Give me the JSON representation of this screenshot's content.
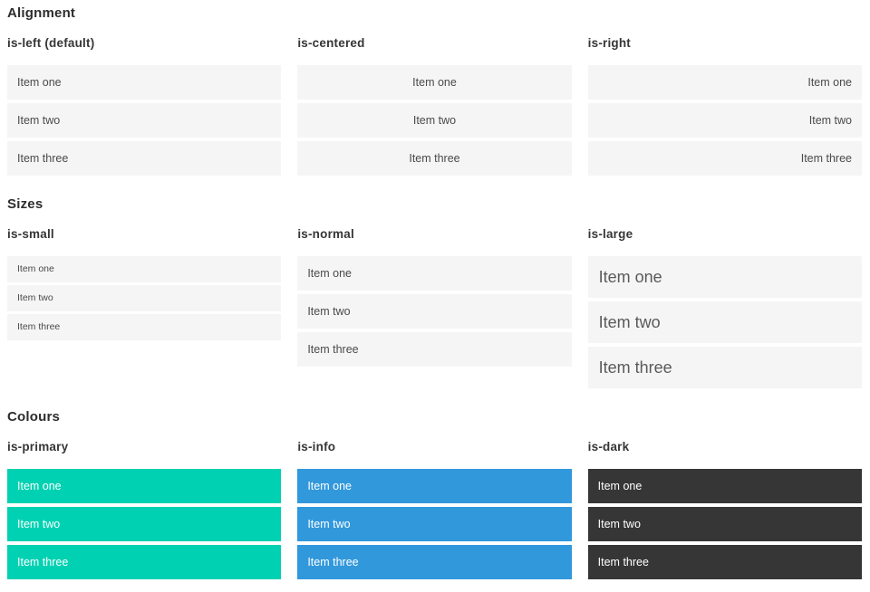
{
  "colors": {
    "primary": "#00d1b2",
    "info": "#3298dc",
    "dark": "#363636",
    "item_bg": "#f5f5f5",
    "item_text": "#4a4a4a"
  },
  "sections": [
    {
      "title": "Alignment",
      "columns": [
        {
          "header": "is-left (default)",
          "items": [
            "Item one",
            "Item two",
            "Item three"
          ]
        },
        {
          "header": "is-centered",
          "items": [
            "Item one",
            "Item two",
            "Item three"
          ]
        },
        {
          "header": "is-right",
          "items": [
            "Item one",
            "Item two",
            "Item three"
          ]
        }
      ]
    },
    {
      "title": "Sizes",
      "columns": [
        {
          "header": "is-small",
          "items": [
            "Item one",
            "Item two",
            "Item three"
          ]
        },
        {
          "header": "is-normal",
          "items": [
            "Item one",
            "Item two",
            "Item three"
          ]
        },
        {
          "header": "is-large",
          "items": [
            "Item one",
            "Item two",
            "Item three"
          ]
        }
      ]
    },
    {
      "title": "Colours",
      "columns": [
        {
          "header": "is-primary",
          "items": [
            "Item one",
            "Item two",
            "Item three"
          ]
        },
        {
          "header": "is-info",
          "items": [
            "Item one",
            "Item two",
            "Item three"
          ]
        },
        {
          "header": "is-dark",
          "items": [
            "Item one",
            "Item two",
            "Item three"
          ]
        }
      ]
    }
  ]
}
